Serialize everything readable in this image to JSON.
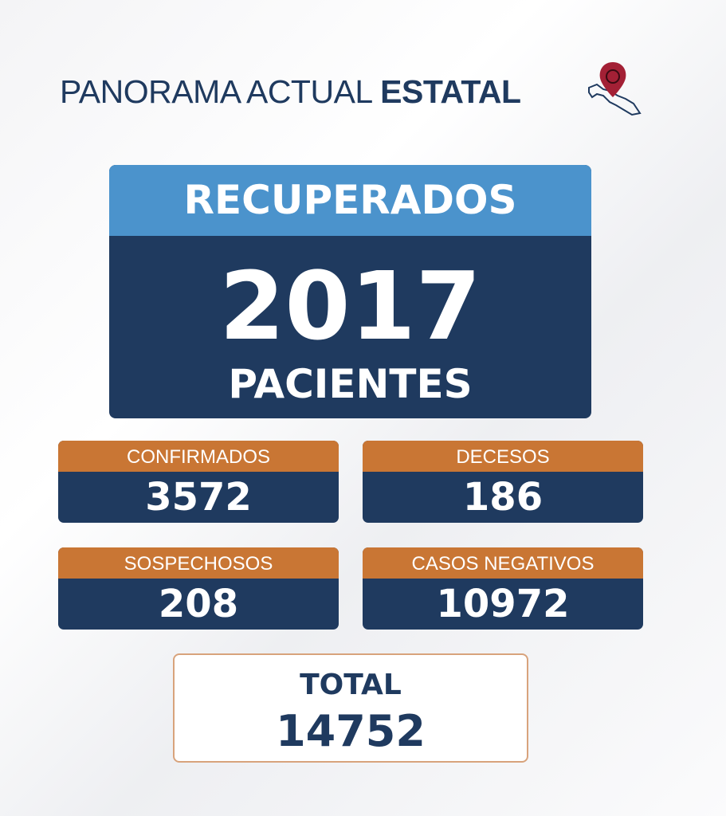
{
  "header": {
    "title": "PANORAMA ACTUAL",
    "title_bold": "ESTATAL"
  },
  "main": {
    "label": "RECUPERADOS",
    "value": "2017",
    "unit": "PACIENTES"
  },
  "cards": [
    {
      "label": "CONFIRMADOS",
      "value": "3572"
    },
    {
      "label": "DECESOS",
      "value": "186"
    },
    {
      "label": "SOSPECHOSOS",
      "value": "208"
    },
    {
      "label": "CASOS NEGATIVOS",
      "value": "10972"
    }
  ],
  "total": {
    "label": "TOTAL",
    "value": "14752"
  }
}
